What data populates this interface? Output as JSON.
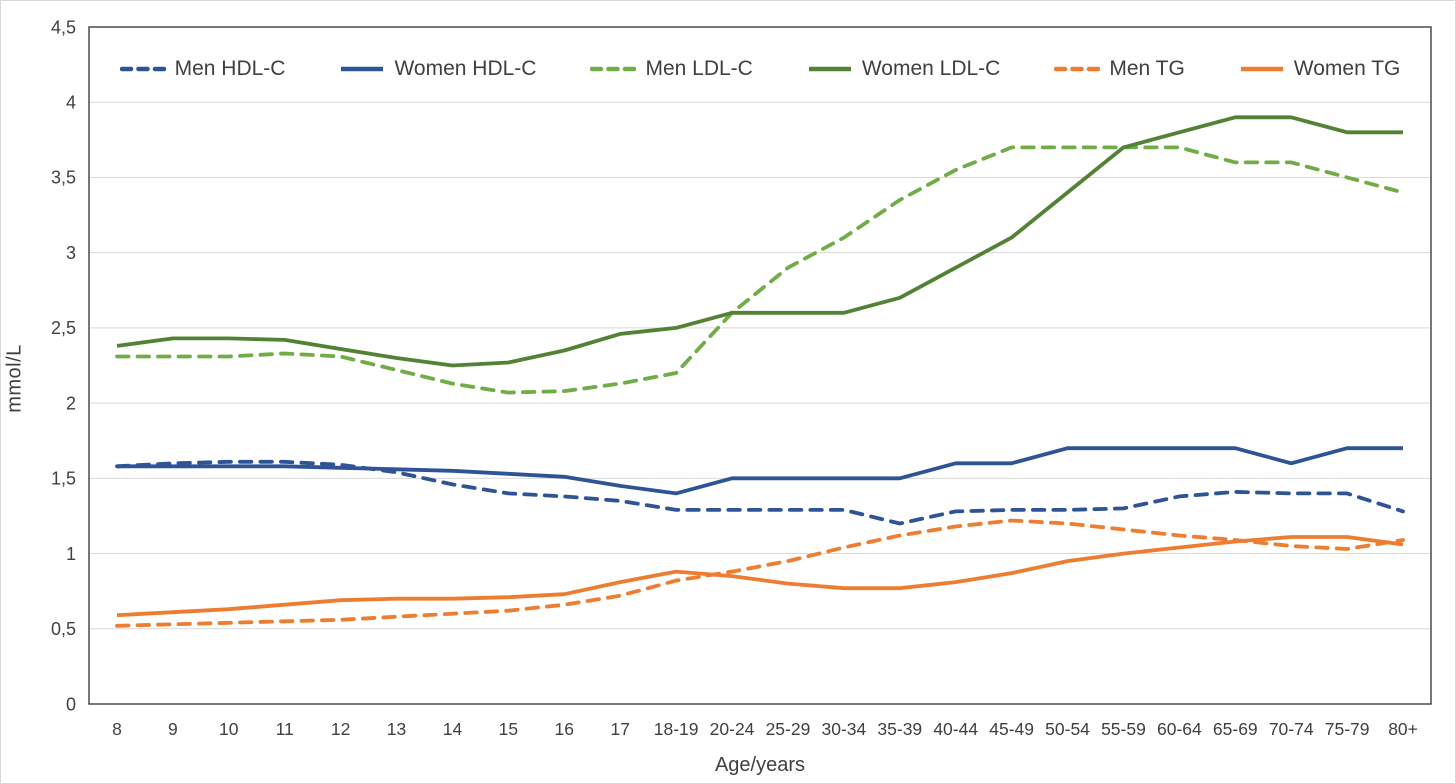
{
  "chart_data": {
    "type": "line",
    "title": "",
    "ylabel": "mmol/L",
    "xlabel": "Age/years",
    "ylim": [
      0,
      4.5
    ],
    "ytick_step": 0.5,
    "ytick_labels": [
      "0",
      "0,5",
      "1",
      "1,5",
      "2",
      "2,5",
      "3",
      "3,5",
      "4",
      "4,5"
    ],
    "grid": true,
    "legend_position": "top-inside",
    "categories": [
      "8",
      "9",
      "10",
      "11",
      "12",
      "13",
      "14",
      "15",
      "16",
      "17",
      "18-19",
      "20-24",
      "25-29",
      "30-34",
      "35-39",
      "40-44",
      "45-49",
      "50-54",
      "55-59",
      "60-64",
      "65-69",
      "70-74",
      "75-79",
      "80+"
    ],
    "series": [
      {
        "name": "Men HDL-C",
        "style": "dashed",
        "color": "#2F5496",
        "values": [
          1.58,
          1.6,
          1.61,
          1.61,
          1.59,
          1.54,
          1.46,
          1.4,
          1.38,
          1.35,
          1.29,
          1.29,
          1.29,
          1.29,
          1.2,
          1.28,
          1.29,
          1.29,
          1.3,
          1.38,
          1.41,
          1.4,
          1.4,
          1.28
        ]
      },
      {
        "name": "Women HDL-C",
        "style": "solid",
        "color": "#2F5496",
        "values": [
          1.58,
          1.58,
          1.58,
          1.58,
          1.57,
          1.56,
          1.55,
          1.53,
          1.51,
          1.45,
          1.4,
          1.5,
          1.5,
          1.5,
          1.5,
          1.6,
          1.6,
          1.7,
          1.7,
          1.7,
          1.7,
          1.6,
          1.7,
          1.7
        ]
      },
      {
        "name": "Men LDL-C",
        "style": "dashed",
        "color": "#70AD47",
        "values": [
          2.31,
          2.31,
          2.31,
          2.33,
          2.31,
          2.22,
          2.13,
          2.07,
          2.08,
          2.13,
          2.2,
          2.6,
          2.9,
          3.1,
          3.35,
          3.55,
          3.7,
          3.7,
          3.7,
          3.7,
          3.6,
          3.6,
          3.5,
          3.4
        ]
      },
      {
        "name": "Women LDL-C",
        "style": "solid",
        "color": "#538135",
        "values": [
          2.38,
          2.43,
          2.43,
          2.42,
          2.36,
          2.3,
          2.25,
          2.27,
          2.35,
          2.46,
          2.5,
          2.6,
          2.6,
          2.6,
          2.7,
          2.9,
          3.1,
          3.4,
          3.7,
          3.8,
          3.9,
          3.9,
          3.8,
          3.8
        ]
      },
      {
        "name": "Men TG",
        "style": "dashed",
        "color": "#ED7D31",
        "values": [
          0.52,
          0.53,
          0.54,
          0.55,
          0.56,
          0.58,
          0.6,
          0.62,
          0.66,
          0.72,
          0.82,
          0.88,
          0.95,
          1.04,
          1.12,
          1.18,
          1.22,
          1.2,
          1.16,
          1.12,
          1.09,
          1.05,
          1.03,
          1.09
        ]
      },
      {
        "name": "Women TG",
        "style": "solid",
        "color": "#ED7D31",
        "values": [
          0.59,
          0.61,
          0.63,
          0.66,
          0.69,
          0.7,
          0.7,
          0.71,
          0.73,
          0.81,
          0.88,
          0.85,
          0.8,
          0.77,
          0.77,
          0.81,
          0.87,
          0.95,
          1.0,
          1.04,
          1.08,
          1.11,
          1.11,
          1.06
        ]
      }
    ]
  },
  "colors": {
    "background": "#FFFFFF",
    "gridline": "#D9D9D9",
    "frame": "#3F3F3F",
    "text": "#404040"
  }
}
